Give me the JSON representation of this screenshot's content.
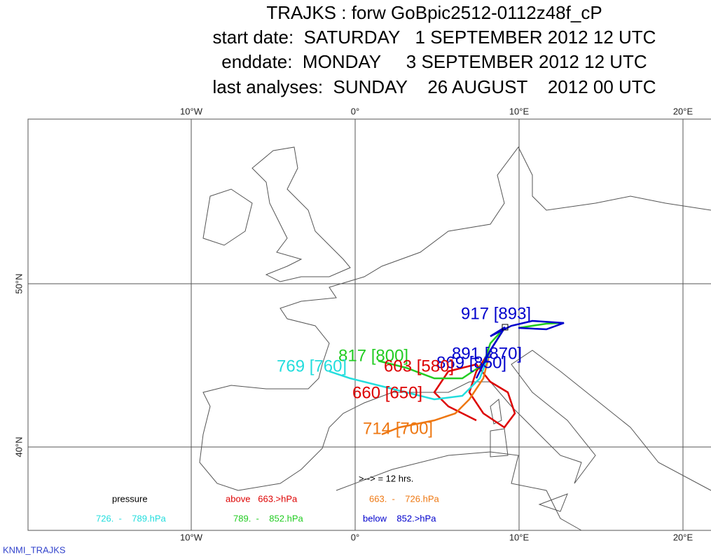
{
  "header": {
    "lines": [
      "TRAJKS : forw GoBpic2512-0112z48f_cP",
      "start date:  SATURDAY   1 SEPTEMBER 2012 12 UTC",
      "enddate:  MONDAY     3 SEPTEMBER 2012 12 UTC",
      "last analyses:  SUNDAY    26 AUGUST    2012 00 UTC"
    ]
  },
  "map": {
    "lon_labels": [
      "10°W",
      "0°",
      "10°E",
      "20°E"
    ],
    "lat_labels": [
      "50°N",
      "40°N"
    ]
  },
  "trajectory_labels": [
    {
      "text": "917 [893]",
      "color": "#0000cc"
    },
    {
      "text": "891 [870]",
      "color": "#0000cc"
    },
    {
      "text": "869 [850]",
      "color": "#0000cc"
    },
    {
      "text": "817 [800]",
      "color": "#22cc22"
    },
    {
      "text": "769 [760]",
      "color": "#22dddd"
    },
    {
      "text": "603 [580]",
      "color": "#dd0000"
    },
    {
      "text": "660 [650]",
      "color": "#dd0000"
    },
    {
      "text": "714 [700]",
      "color": "#ee7711"
    }
  ],
  "legend": {
    "time_step": ">--> = 12 hrs.",
    "title": "pressure",
    "items": [
      {
        "text": "above   663.>hPa",
        "color": "#dd0000"
      },
      {
        "text": "663.  -    726.hPa",
        "color": "#ee7711"
      },
      {
        "text": "726.  -    789.hPa",
        "color": "#22dddd"
      },
      {
        "text": "789.  -    852.hPa",
        "color": "#22cc22"
      },
      {
        "text": "below    852.>hPa",
        "color": "#0000cc"
      }
    ]
  },
  "footer": "KNMI_TRAJKS"
}
